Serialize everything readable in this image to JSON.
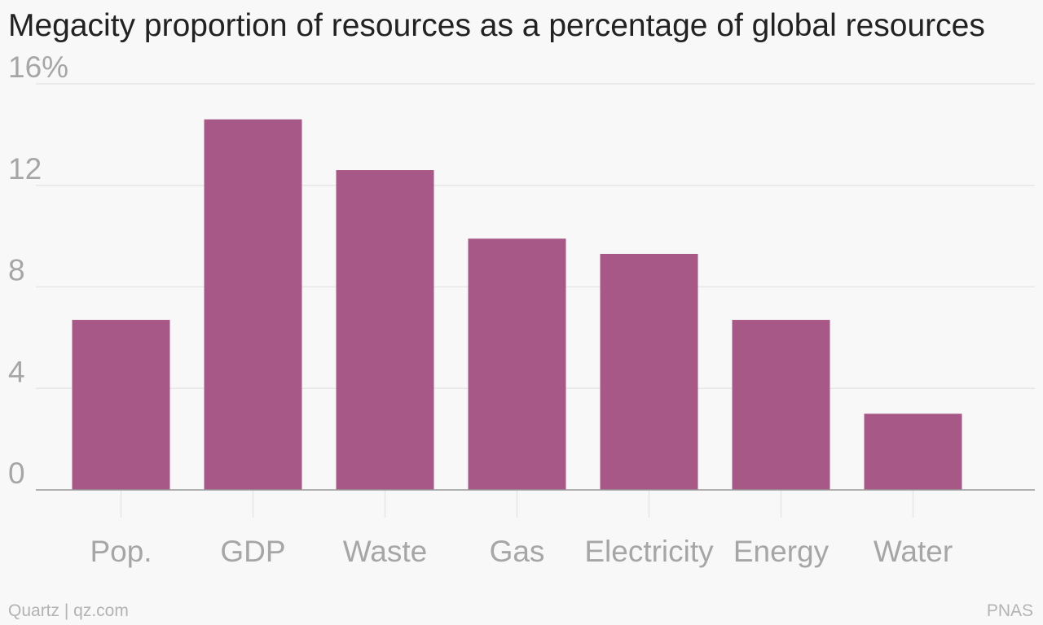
{
  "title": "Megacity proportion of resources as a percentage of global resources",
  "footer": {
    "credit": "Quartz | qz.com",
    "source": "PNAS"
  },
  "colors": {
    "bar": "#a85886",
    "gridline": "#e6e6e6",
    "baseline": "#999999",
    "tick_label": "#a6a6a6",
    "title": "#222222",
    "background": "#f8f8f8"
  },
  "chart_data": {
    "type": "bar",
    "title": "Megacity proportion of resources as a percentage of global resources",
    "xlabel": "",
    "ylabel": "",
    "categories": [
      "Pop.",
      "GDP",
      "Waste",
      "Gas",
      "Electricity",
      "Energy",
      "Water"
    ],
    "values": [
      6.7,
      14.6,
      12.6,
      9.9,
      9.3,
      6.7,
      3.0
    ],
    "ylim": [
      0,
      16
    ],
    "yticks": [
      {
        "value": 0,
        "label": "0"
      },
      {
        "value": 4,
        "label": "4"
      },
      {
        "value": 8,
        "label": "8"
      },
      {
        "value": 12,
        "label": "12"
      },
      {
        "value": 16,
        "label": "16%"
      }
    ],
    "grid": true,
    "legend": "none"
  }
}
